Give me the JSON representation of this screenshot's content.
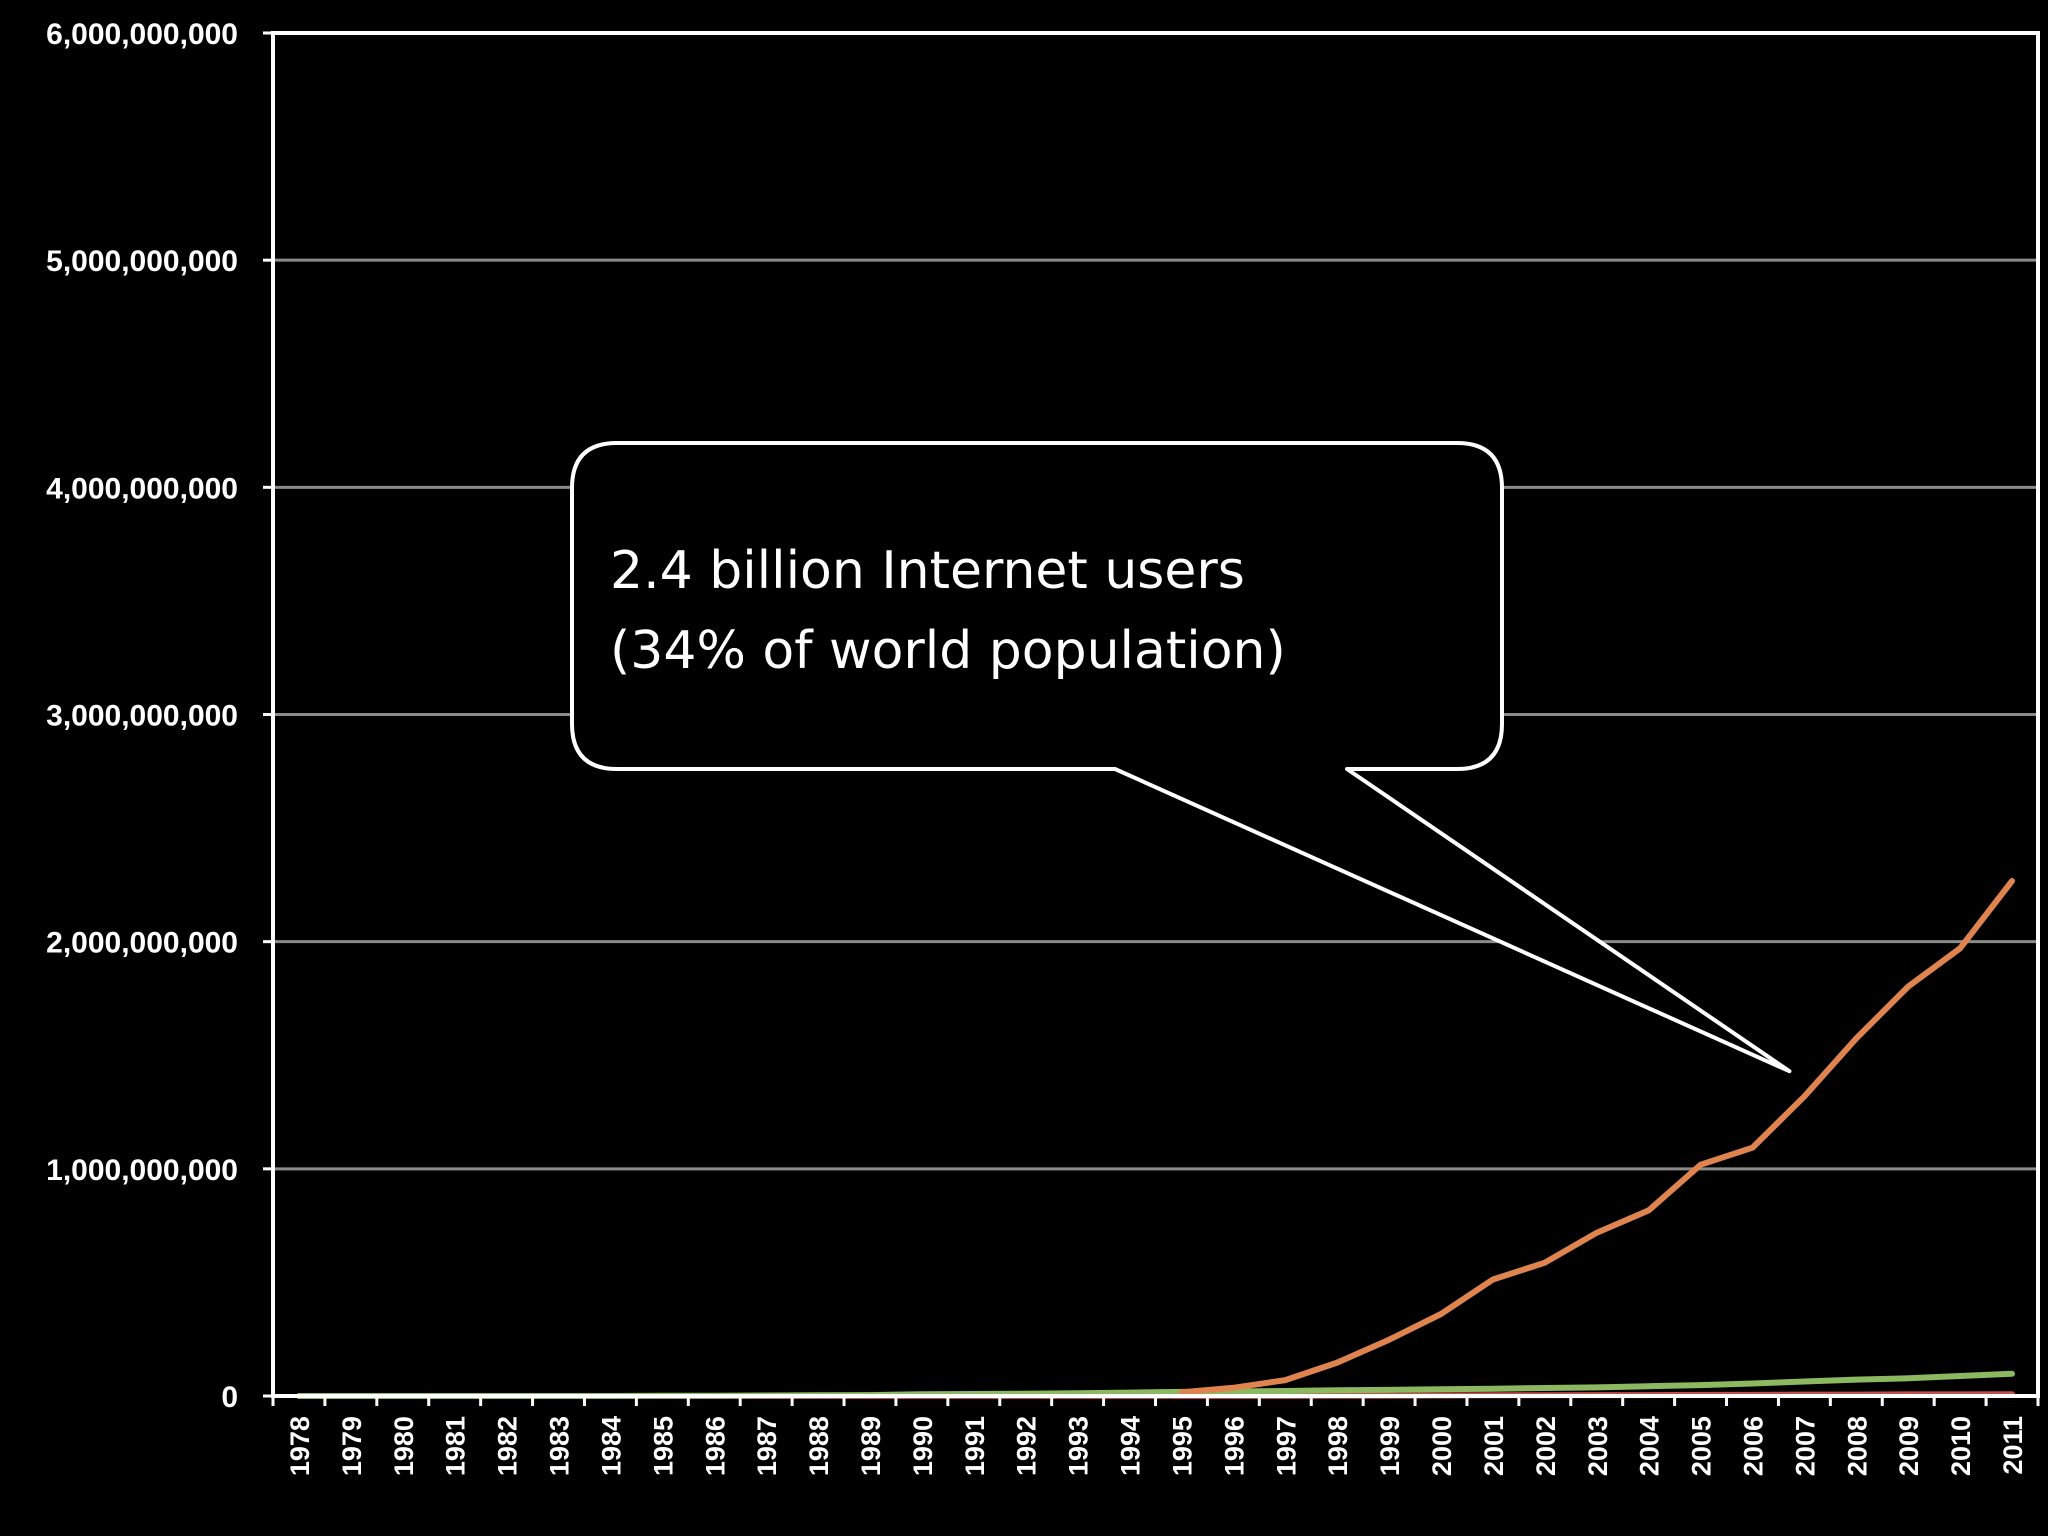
{
  "chart_data": {
    "type": "line",
    "title": "",
    "xlabel": "",
    "ylabel": "",
    "ylim": [
      0,
      6000000000
    ],
    "yticks": [
      0,
      1000000000,
      2000000000,
      3000000000,
      4000000000,
      5000000000,
      6000000000
    ],
    "ytick_labels": [
      "0",
      "1,000,000,000",
      "2,000,000,000",
      "3,000,000,000",
      "4,000,000,000",
      "5,000,000,000",
      "6,000,000,000"
    ],
    "grid": true,
    "x": [
      "1978",
      "1979",
      "1980",
      "1981",
      "1982",
      "1983",
      "1984",
      "1985",
      "1986",
      "1987",
      "1988",
      "1989",
      "1990",
      "1991",
      "1992",
      "1993",
      "1994",
      "1995",
      "1996",
      "1997",
      "1998",
      "1999",
      "2000",
      "2001",
      "2002",
      "2003",
      "2004",
      "2005",
      "2006",
      "2007",
      "2008",
      "2009",
      "2010",
      "2011"
    ],
    "series": [
      {
        "color": "#e0844f",
        "values": [
          null,
          null,
          null,
          null,
          null,
          null,
          null,
          null,
          null,
          null,
          null,
          null,
          null,
          null,
          null,
          null,
          null,
          16000000,
          36000000,
          70000000,
          147000000,
          248000000,
          361000000,
          513000000,
          587000000,
          719000000,
          817000000,
          1018000000,
          1093000000,
          1319000000,
          1574000000,
          1802000000,
          1971000000,
          2267000000
        ]
      },
      {
        "color": "#8cb860",
        "values": [
          0,
          0,
          0,
          0,
          0,
          0,
          0,
          1000000,
          1000000,
          2000000,
          3000000,
          4000000,
          8000000,
          9000000,
          10000000,
          12000000,
          15000000,
          18000000,
          20000000,
          22000000,
          25000000,
          27000000,
          30000000,
          32000000,
          35000000,
          38000000,
          43000000,
          48000000,
          55000000,
          64000000,
          72000000,
          78000000,
          88000000,
          98000000
        ]
      },
      {
        "color": "#c0504d",
        "values": [
          0,
          0,
          0,
          0,
          0,
          0,
          0,
          0,
          0,
          0,
          0,
          0,
          0,
          0,
          0,
          0,
          0,
          0,
          0,
          0,
          1000000,
          1000000,
          2000000,
          3000000,
          3000000,
          4000000,
          4000000,
          5000000,
          5000000,
          6000000,
          6000000,
          7000000,
          7000000,
          8000000
        ]
      }
    ],
    "annotation": {
      "lines": [
        "2.4 billion Internet users",
        "(34% of world population)"
      ],
      "target_x": "2007",
      "target_y": 1430000000
    }
  }
}
